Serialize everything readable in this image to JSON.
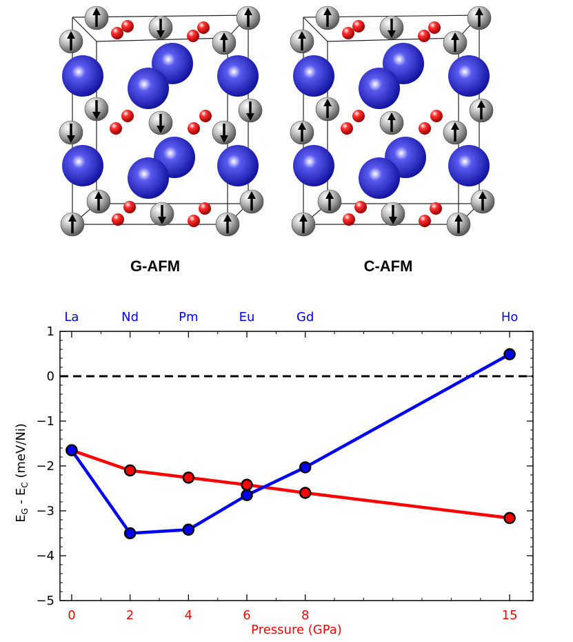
{
  "structures": {
    "panels": [
      {
        "label": "G-AFM",
        "spins": {
          "top_back": [
            1,
            -1,
            -1,
            1
          ],
          "top_front": [
            1,
            1,
            1,
            1
          ],
          "mid_back": [
            -1,
            1,
            1,
            -1
          ],
          "mid_front": [
            -1,
            -1,
            -1,
            -1
          ],
          "bottom_back": [
            1,
            -1,
            -1,
            1
          ],
          "bottom_front": [
            1,
            1,
            1,
            1
          ]
        }
      },
      {
        "label": "C-AFM",
        "spins": {
          "top_back": [
            1,
            -1,
            -1,
            1
          ],
          "top_front": [
            1,
            1,
            1,
            1
          ],
          "mid_back": [
            1,
            -1,
            -1,
            1
          ],
          "mid_front": [
            1,
            1,
            1,
            1
          ],
          "bottom_back": [
            1,
            -1,
            -1,
            1
          ],
          "bottom_front": [
            1,
            1,
            1,
            1
          ]
        }
      }
    ],
    "colors": {
      "ni": "#9a9a9a",
      "rare_earth": "#2a2ad8",
      "oxygen": "#e01010",
      "cell_edge": "#222222"
    }
  },
  "chart_data": {
    "type": "line",
    "xlabel": "Pressure (GPa)",
    "ylabel_main": "E",
    "ylabel_sub1": "G",
    "ylabel_mid": " - E",
    "ylabel_sub2": "C",
    "ylabel_unit": " (meV/Ni)",
    "x_positions": [
      0,
      1,
      2,
      3,
      4,
      5,
      6,
      7,
      8,
      9
    ],
    "x_tick_labels": [
      "0",
      "2",
      "4",
      "6",
      "8",
      "15"
    ],
    "x_tick_label_positions": [
      0,
      2,
      4,
      6,
      8,
      15
    ],
    "top_tick_labels": [
      "La",
      "Nd",
      "Pm",
      "Eu",
      "Gd",
      "Ho"
    ],
    "ylim": [
      -5,
      1
    ],
    "yticks": [
      1,
      0,
      -1,
      -2,
      -3,
      -4,
      -5
    ],
    "ytick_labels": [
      "1",
      "0",
      "−1",
      "−2",
      "−3",
      "−4",
      "−5"
    ],
    "reference_line_y": 0,
    "series": [
      {
        "color": "#ff0000",
        "x": [
          0,
          2,
          4,
          6,
          8,
          15
        ],
        "y": [
          -1.65,
          -2.1,
          -2.26,
          -2.42,
          -2.6,
          -3.16
        ]
      },
      {
        "color": "#0000ee",
        "x": [
          0,
          2,
          4,
          6,
          8,
          15
        ],
        "y": [
          -1.65,
          -3.5,
          -3.42,
          -2.65,
          -2.03,
          0.49
        ]
      }
    ],
    "colors": {
      "bottom_axis_text": "#ff0000",
      "top_axis_text": "#0000ee",
      "axis": "#000000"
    }
  }
}
